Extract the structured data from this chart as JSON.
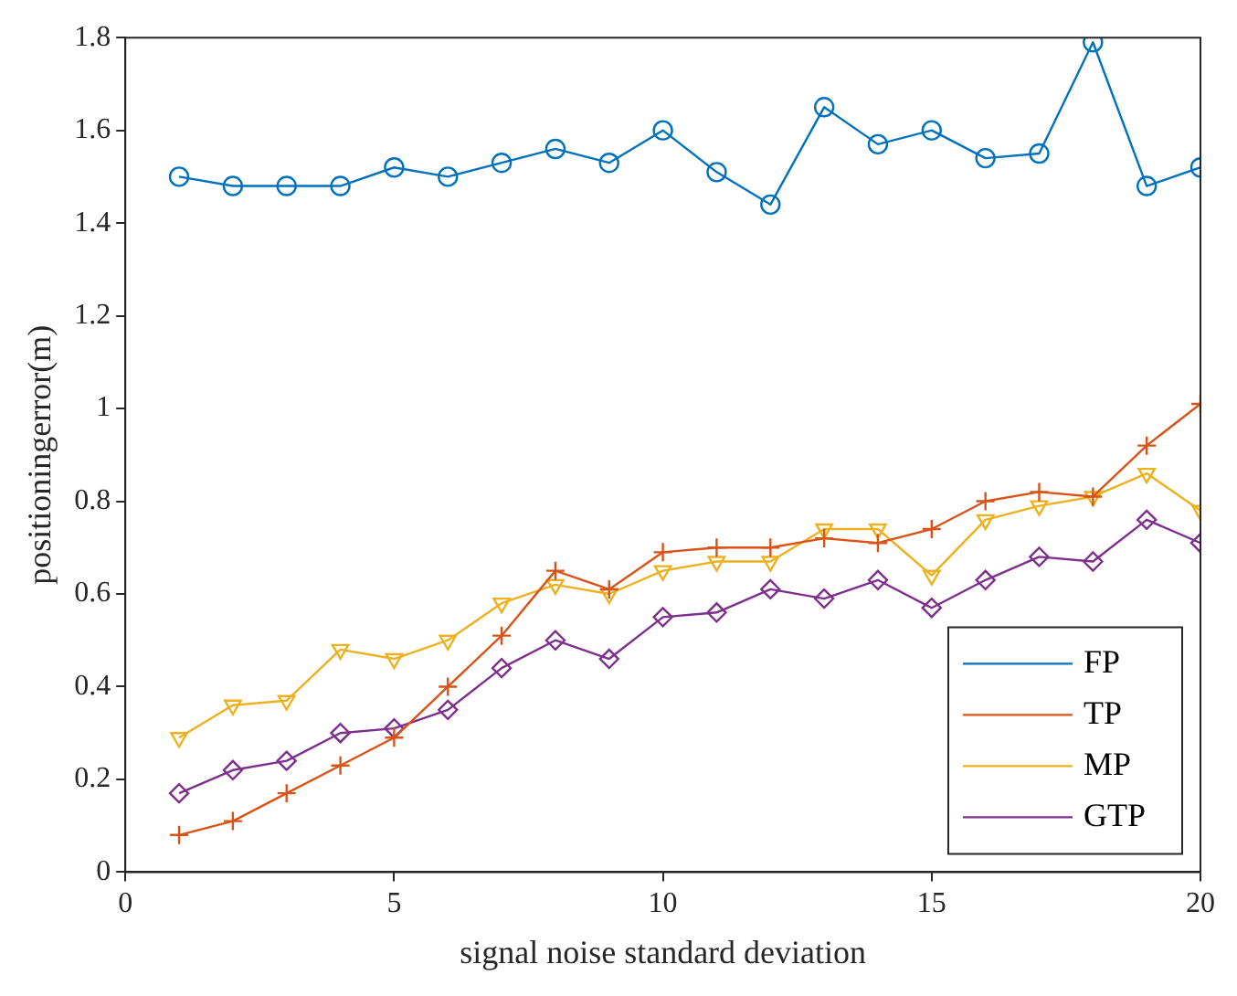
{
  "chart_data": {
    "type": "line",
    "xlabel": "signal noise standard deviation",
    "ylabel": "positioningerror(m)",
    "x": [
      1,
      2,
      3,
      4,
      5,
      6,
      7,
      8,
      9,
      10,
      11,
      12,
      13,
      14,
      15,
      16,
      17,
      18,
      19,
      20
    ],
    "xlim": [
      0,
      20
    ],
    "xticks": [
      0,
      5,
      10,
      15,
      20
    ],
    "ylim": [
      0,
      1.8
    ],
    "yticks": [
      0,
      0.2,
      0.4,
      0.6,
      0.8,
      1,
      1.2,
      1.4,
      1.6,
      1.8
    ],
    "grid": false,
    "legend": "bottom right",
    "line_style": "solid",
    "series": [
      {
        "name": "FP",
        "color": "#0072bd",
        "marker": "circle",
        "values": [
          1.5,
          1.48,
          1.48,
          1.48,
          1.52,
          1.5,
          1.53,
          1.56,
          1.53,
          1.6,
          1.51,
          1.44,
          1.65,
          1.57,
          1.6,
          1.54,
          1.55,
          1.79,
          1.48,
          1.52
        ]
      },
      {
        "name": "TP",
        "color": "#d95319",
        "marker": "cross",
        "values": [
          0.08,
          0.11,
          0.17,
          0.23,
          0.29,
          0.4,
          0.51,
          0.65,
          0.61,
          0.69,
          0.7,
          0.7,
          0.72,
          0.71,
          0.74,
          0.8,
          0.82,
          0.81,
          0.92,
          1.01
        ]
      },
      {
        "name": "MP",
        "color": "#edb120",
        "marker": "triangle",
        "values": [
          0.29,
          0.36,
          0.37,
          0.48,
          0.46,
          0.5,
          0.58,
          0.62,
          0.6,
          0.65,
          0.67,
          0.67,
          0.74,
          0.74,
          0.64,
          0.76,
          0.79,
          0.81,
          0.86,
          0.78
        ]
      },
      {
        "name": "GTP",
        "color": "#7e2f8e",
        "marker": "diamond",
        "values": [
          0.17,
          0.22,
          0.24,
          0.3,
          0.31,
          0.35,
          0.44,
          0.5,
          0.46,
          0.55,
          0.56,
          0.61,
          0.59,
          0.63,
          0.57,
          0.63,
          0.68,
          0.67,
          0.76,
          0.71
        ]
      }
    ]
  }
}
